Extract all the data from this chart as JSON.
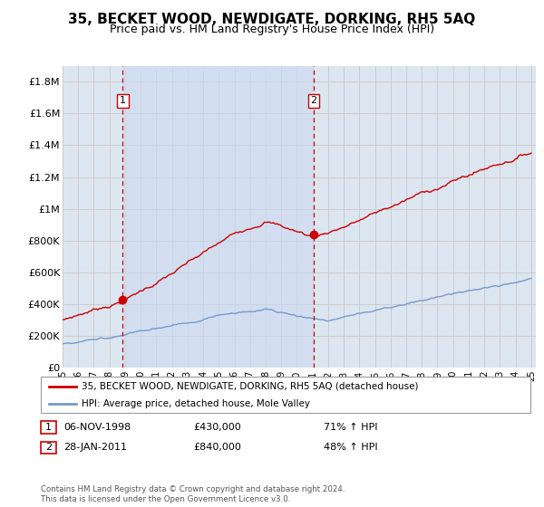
{
  "title": "35, BECKET WOOD, NEWDIGATE, DORKING, RH5 5AQ",
  "subtitle": "Price paid vs. HM Land Registry's House Price Index (HPI)",
  "ylim": [
    0,
    1900000
  ],
  "yticks": [
    0,
    200000,
    400000,
    600000,
    800000,
    1000000,
    1200000,
    1400000,
    1600000,
    1800000
  ],
  "ytick_labels": [
    "£0",
    "£200K",
    "£400K",
    "£600K",
    "£800K",
    "£1M",
    "£1.2M",
    "£1.4M",
    "£1.6M",
    "£1.8M"
  ],
  "sale1_date": 1998.85,
  "sale1_price": 430000,
  "sale2_date": 2011.08,
  "sale2_price": 840000,
  "red_line_color": "#cc0000",
  "blue_line_color": "#7799cc",
  "dashed_vline_color": "#cc0000",
  "grid_color": "#cccccc",
  "background_color": "#dce6f1",
  "background_between": "#ccdaee",
  "legend_label_red": "35, BECKET WOOD, NEWDIGATE, DORKING, RH5 5AQ (detached house)",
  "legend_label_blue": "HPI: Average price, detached house, Mole Valley",
  "footnote": "Contains HM Land Registry data © Crown copyright and database right 2024.\nThis data is licensed under the Open Government Licence v3.0.",
  "title_fontsize": 11,
  "subtitle_fontsize": 9
}
